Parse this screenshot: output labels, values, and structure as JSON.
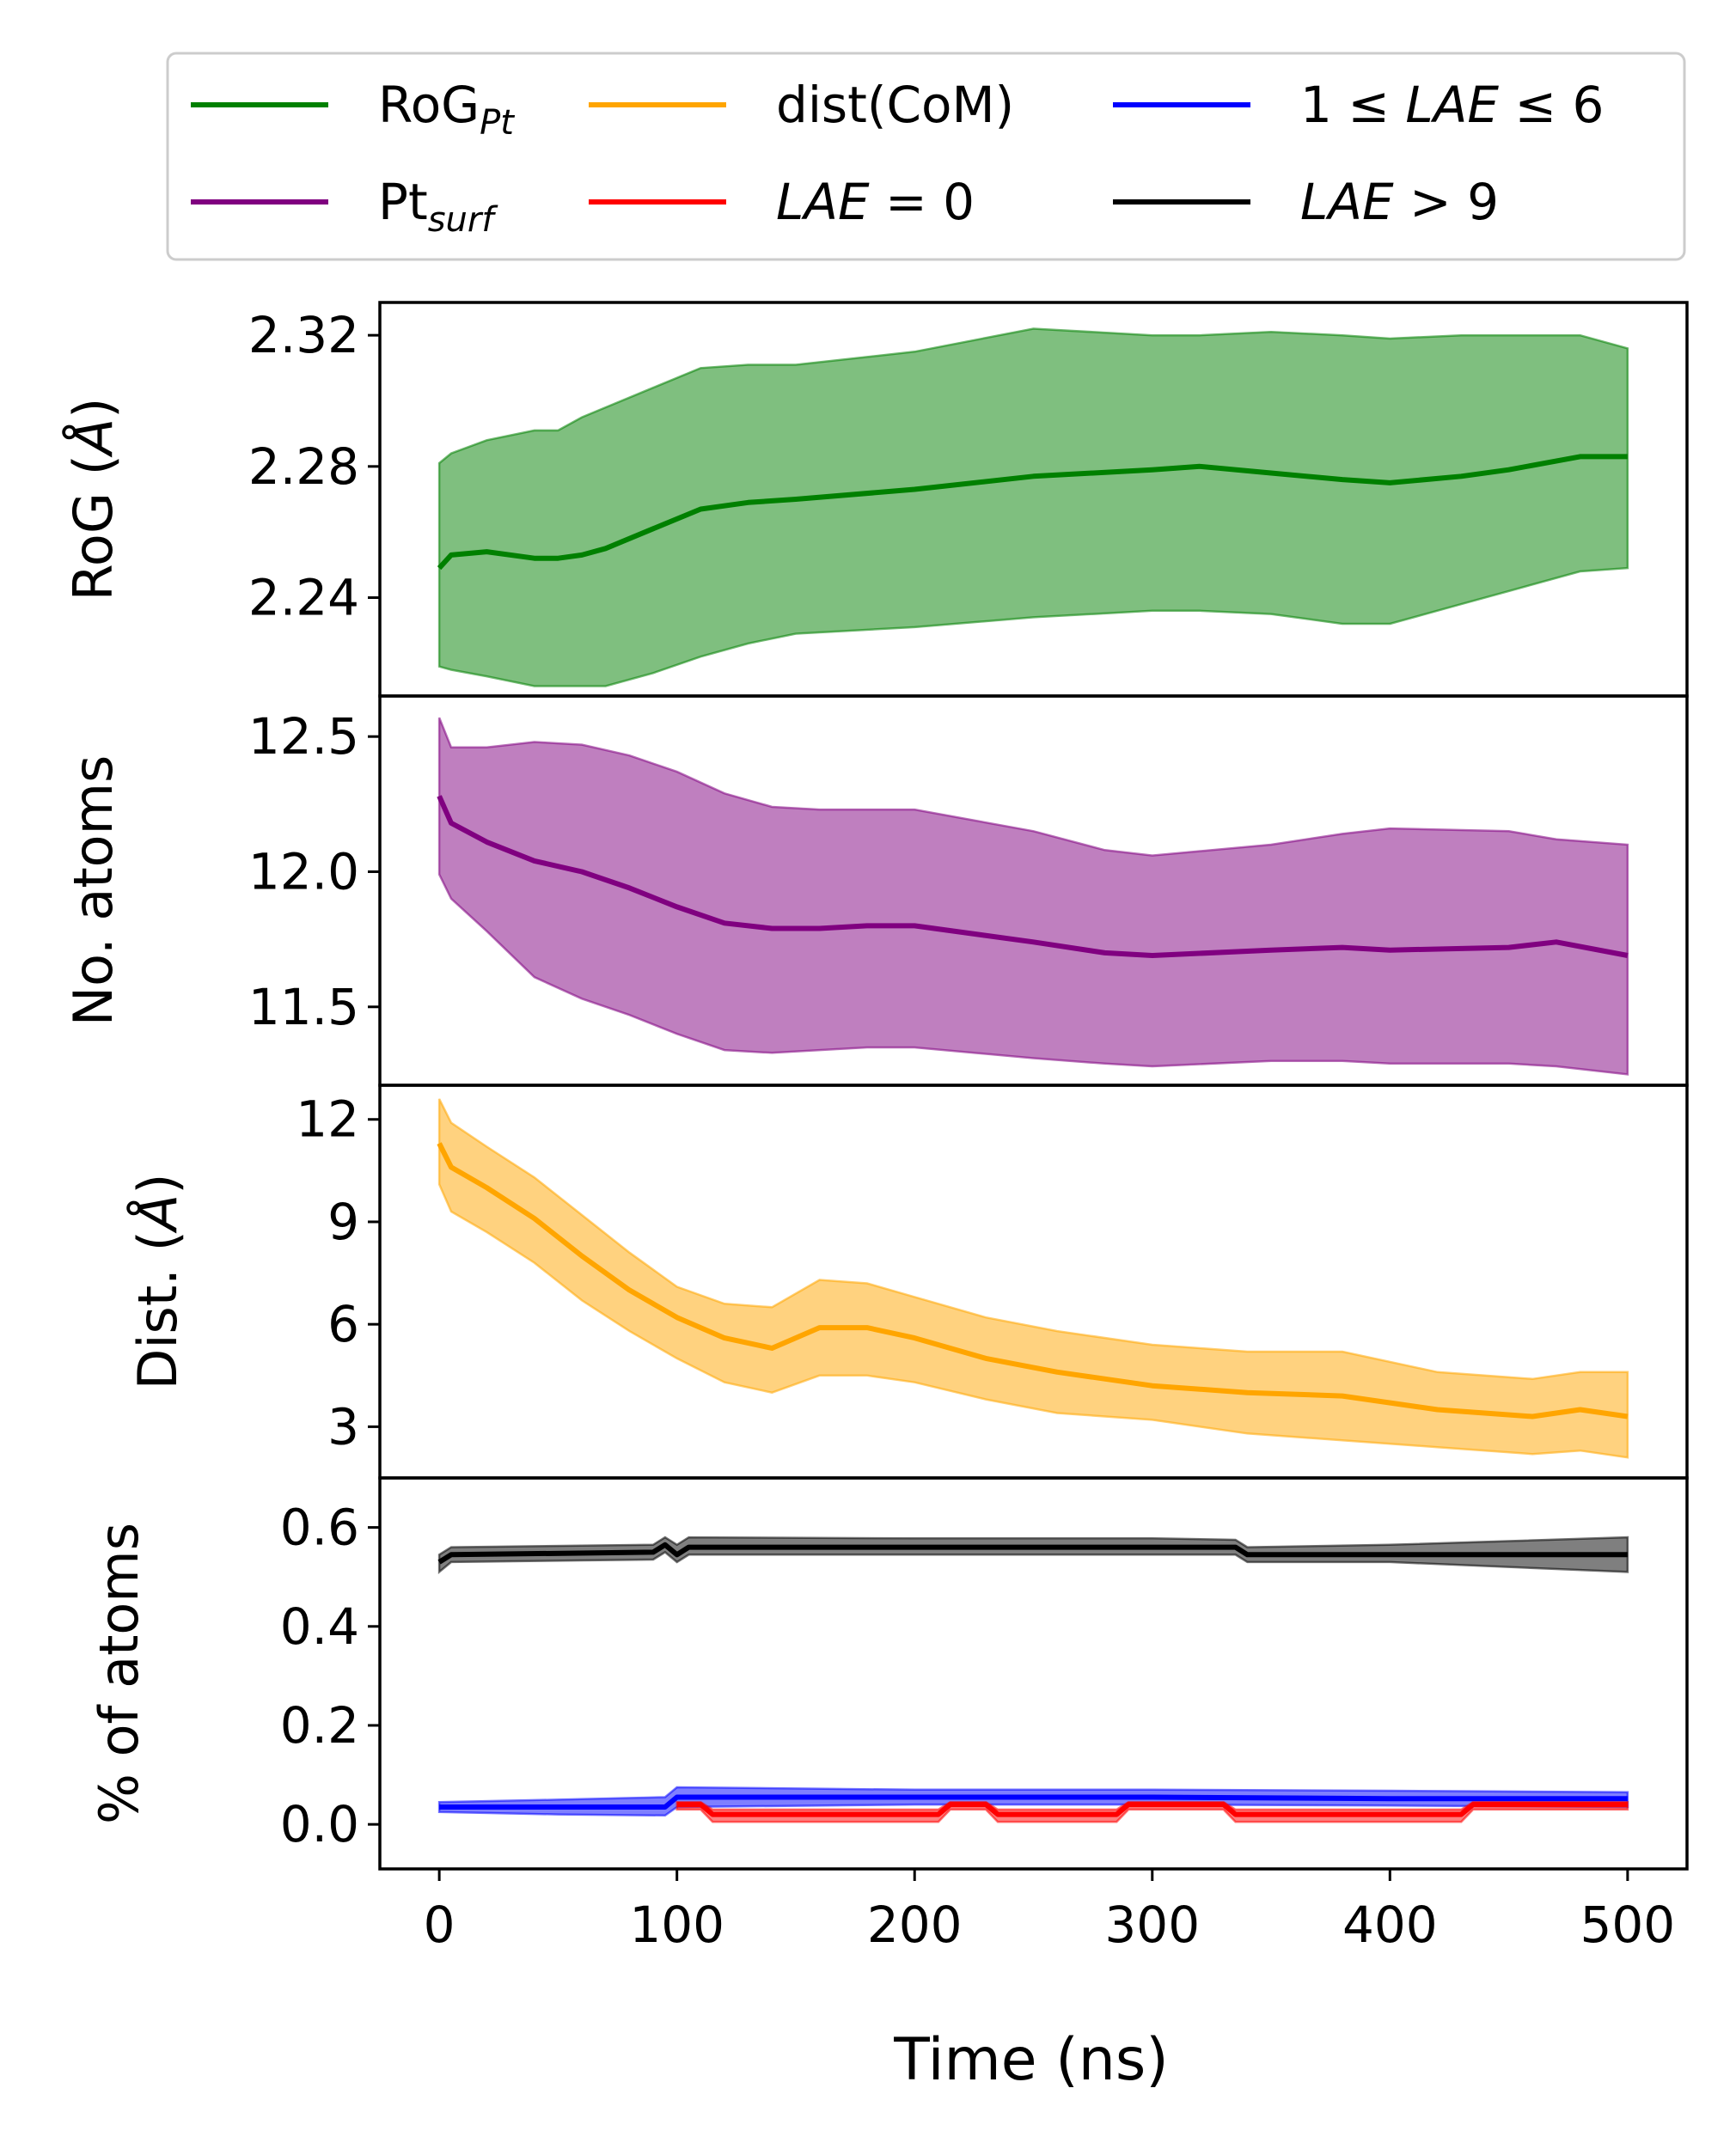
{
  "chart_data": [
    {
      "type": "line",
      "ylabel": "RoG (Å)",
      "ylim": [
        2.21,
        2.33
      ],
      "yticks": [
        2.24,
        2.28,
        2.32
      ],
      "ytick_labels": [
        "2.24",
        "2.28",
        "2.32"
      ],
      "series": [
        {
          "name": "RoG_Pt",
          "color": "#008000",
          "x": [
            0,
            5,
            20,
            40,
            50,
            60,
            70,
            90,
            110,
            130,
            150,
            200,
            250,
            300,
            320,
            350,
            380,
            400,
            430,
            450,
            480,
            500
          ],
          "mean": [
            2.249,
            2.253,
            2.254,
            2.252,
            2.252,
            2.253,
            2.255,
            2.261,
            2.267,
            2.269,
            2.27,
            2.273,
            2.277,
            2.279,
            2.28,
            2.278,
            2.276,
            2.275,
            2.277,
            2.279,
            2.283,
            2.283
          ],
          "upper": [
            2.281,
            2.284,
            2.288,
            2.291,
            2.291,
            2.295,
            2.298,
            2.304,
            2.31,
            2.311,
            2.311,
            2.315,
            2.322,
            2.32,
            2.32,
            2.321,
            2.32,
            2.319,
            2.32,
            2.32,
            2.32,
            2.316
          ],
          "lower": [
            2.219,
            2.218,
            2.216,
            2.213,
            2.213,
            2.213,
            2.213,
            2.217,
            2.222,
            2.226,
            2.229,
            2.231,
            2.234,
            2.236,
            2.236,
            2.235,
            2.232,
            2.232,
            2.238,
            2.242,
            2.248,
            2.249
          ]
        }
      ]
    },
    {
      "type": "line",
      "ylabel": "No. atoms",
      "ylim": [
        11.21,
        12.65
      ],
      "yticks": [
        11.5,
        12.0,
        12.5
      ],
      "ytick_labels": [
        "11.5",
        "12.0",
        "12.5"
      ],
      "series": [
        {
          "name": "Pt_surf",
          "color": "#800080",
          "x": [
            0,
            5,
            20,
            40,
            60,
            80,
            100,
            120,
            140,
            160,
            180,
            200,
            250,
            280,
            300,
            350,
            380,
            400,
            450,
            470,
            500
          ],
          "mean": [
            12.28,
            12.18,
            12.11,
            12.04,
            12.0,
            11.94,
            11.87,
            11.81,
            11.79,
            11.79,
            11.8,
            11.8,
            11.74,
            11.7,
            11.69,
            11.71,
            11.72,
            11.71,
            11.72,
            11.74,
            11.69
          ],
          "upper": [
            12.57,
            12.46,
            12.46,
            12.48,
            12.47,
            12.43,
            12.37,
            12.29,
            12.24,
            12.23,
            12.23,
            12.23,
            12.15,
            12.08,
            12.06,
            12.1,
            12.14,
            12.16,
            12.15,
            12.12,
            12.1
          ],
          "lower": [
            11.99,
            11.9,
            11.78,
            11.61,
            11.53,
            11.47,
            11.4,
            11.34,
            11.33,
            11.34,
            11.35,
            11.35,
            11.31,
            11.29,
            11.28,
            11.3,
            11.3,
            11.29,
            11.29,
            11.28,
            11.25
          ]
        }
      ]
    },
    {
      "type": "line",
      "ylabel": "Dist. (Å)",
      "ylim": [
        1.5,
        13.0
      ],
      "yticks": [
        3,
        6,
        9,
        12
      ],
      "ytick_labels": [
        "3",
        "6",
        "9",
        "12"
      ],
      "series": [
        {
          "name": "dist(CoM)",
          "color": "#FFA500",
          "x": [
            0,
            5,
            20,
            40,
            60,
            80,
            100,
            120,
            140,
            160,
            180,
            200,
            230,
            260,
            300,
            340,
            380,
            420,
            460,
            480,
            500
          ],
          "mean": [
            11.3,
            10.6,
            10.0,
            9.1,
            8.0,
            7.0,
            6.2,
            5.6,
            5.3,
            5.9,
            5.9,
            5.6,
            5.0,
            4.6,
            4.2,
            4.0,
            3.9,
            3.5,
            3.3,
            3.5,
            3.3
          ],
          "upper": [
            12.6,
            11.9,
            11.2,
            10.3,
            9.2,
            8.1,
            7.1,
            6.6,
            6.5,
            7.3,
            7.2,
            6.8,
            6.2,
            5.8,
            5.4,
            5.2,
            5.2,
            4.6,
            4.4,
            4.6,
            4.6
          ],
          "lower": [
            10.1,
            9.3,
            8.7,
            7.8,
            6.7,
            5.8,
            5.0,
            4.3,
            4.0,
            4.5,
            4.5,
            4.3,
            3.8,
            3.4,
            3.2,
            2.8,
            2.6,
            2.4,
            2.2,
            2.3,
            2.1
          ]
        }
      ]
    },
    {
      "type": "line",
      "ylabel": "% of atoms",
      "xlabel": "Time (ns)",
      "xlim": [
        -25,
        525
      ],
      "xticks": [
        0,
        100,
        200,
        300,
        400,
        500
      ],
      "xtick_labels": [
        "0",
        "100",
        "200",
        "300",
        "400",
        "500"
      ],
      "ylim": [
        -0.09,
        0.7
      ],
      "yticks": [
        0.0,
        0.2,
        0.4,
        0.6
      ],
      "ytick_labels": [
        "0.0",
        "0.2",
        "0.4",
        "0.6"
      ],
      "series": [
        {
          "name": "LAE > 9",
          "color": "#000000",
          "x": [
            0,
            5,
            90,
            95,
            100,
            105,
            200,
            300,
            335,
            340,
            400,
            500
          ],
          "mean": [
            0.53,
            0.545,
            0.55,
            0.565,
            0.545,
            0.56,
            0.56,
            0.56,
            0.56,
            0.545,
            0.545,
            0.545
          ],
          "upper": [
            0.545,
            0.56,
            0.565,
            0.58,
            0.565,
            0.58,
            0.578,
            0.578,
            0.575,
            0.56,
            0.565,
            0.58
          ],
          "lower": [
            0.51,
            0.53,
            0.535,
            0.55,
            0.53,
            0.545,
            0.545,
            0.545,
            0.545,
            0.53,
            0.53,
            0.51
          ]
        },
        {
          "name": "1 ≤ LAE ≤ 6",
          "color": "#0000FF",
          "x": [
            0,
            50,
            95,
            100,
            200,
            300,
            400,
            500
          ],
          "mean": [
            0.035,
            0.035,
            0.035,
            0.055,
            0.055,
            0.055,
            0.052,
            0.052
          ],
          "upper": [
            0.045,
            0.05,
            0.055,
            0.075,
            0.07,
            0.07,
            0.068,
            0.065
          ],
          "lower": [
            0.025,
            0.02,
            0.018,
            0.035,
            0.04,
            0.04,
            0.038,
            0.035
          ]
        },
        {
          "name": "LAE = 0",
          "color": "#FF0000",
          "x": [
            100,
            110,
            115,
            210,
            215,
            230,
            235,
            285,
            290,
            330,
            335,
            430,
            435,
            500
          ],
          "mean": [
            0.04,
            0.04,
            0.02,
            0.02,
            0.04,
            0.04,
            0.02,
            0.02,
            0.04,
            0.04,
            0.02,
            0.02,
            0.04,
            0.04
          ],
          "upper": [
            0.045,
            0.045,
            0.03,
            0.03,
            0.045,
            0.045,
            0.03,
            0.03,
            0.045,
            0.045,
            0.03,
            0.03,
            0.045,
            0.045
          ],
          "lower": [
            0.03,
            0.03,
            0.005,
            0.005,
            0.03,
            0.03,
            0.005,
            0.005,
            0.03,
            0.03,
            0.005,
            0.005,
            0.03,
            0.03
          ]
        }
      ]
    }
  ],
  "legend": {
    "placement": "top",
    "entries": [
      {
        "key": "rog",
        "color": "#008000",
        "text": "RoG",
        "sub": "Pt",
        "italic_sub": true
      },
      {
        "key": "dist",
        "color": "#FFA500",
        "text": "dist(CoM)"
      },
      {
        "key": "lae16",
        "color": "#0000FF",
        "text": "1 ≤ LAE ≤ 6",
        "italic": true
      },
      {
        "key": "ptsurf",
        "color": "#800080",
        "text": "Pt",
        "sub": "surf",
        "italic_sub": true
      },
      {
        "key": "lae0",
        "color": "#FF0000",
        "text": "LAE = 0",
        "italic": true
      },
      {
        "key": "lae9",
        "color": "#000000",
        "text": "LAE > 9",
        "italic": true
      }
    ]
  }
}
